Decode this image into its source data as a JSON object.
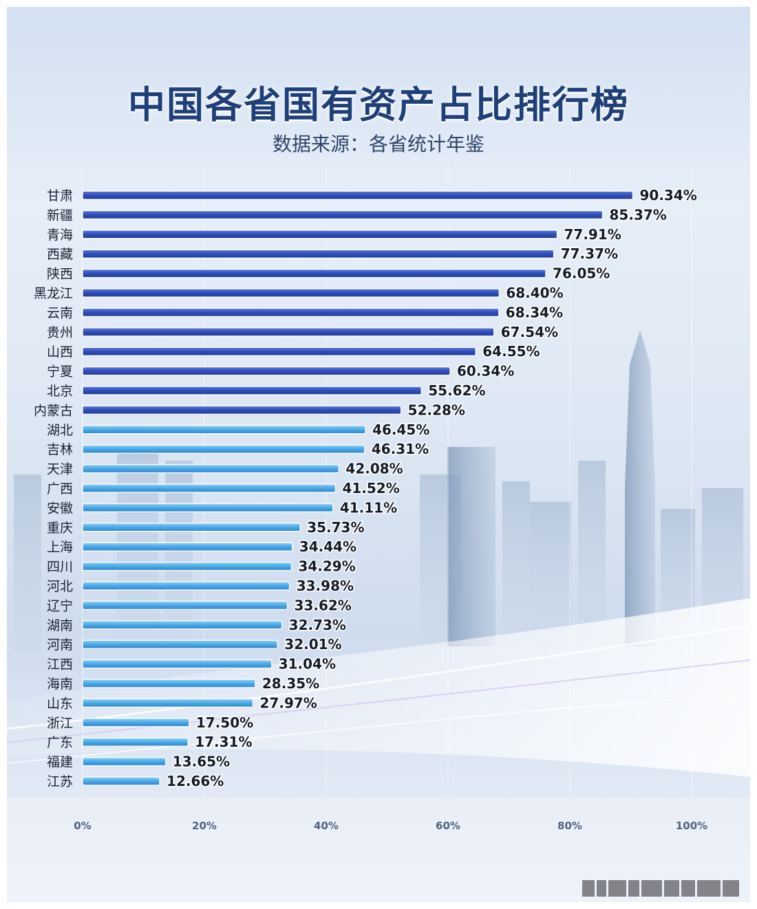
{
  "title": "中国各省国有资产占比排行榜",
  "subtitle": "数据来源：各省统计年鉴",
  "colors": {
    "dark_bar": "#2f4eb8",
    "light_bar": "#4aa8e6",
    "title": "#1f3f78"
  },
  "chart_data": {
    "type": "bar",
    "orientation": "horizontal",
    "title": "中国各省国有资产占比排行榜",
    "subtitle": "数据来源：各省统计年鉴",
    "categories": [
      "甘肃",
      "新疆",
      "青海",
      "西藏",
      "陕西",
      "黑龙江",
      "云南",
      "贵州",
      "山西",
      "宁夏",
      "北京",
      "内蒙古",
      "湖北",
      "吉林",
      "天津",
      "广西",
      "安徽",
      "重庆",
      "上海",
      "四川",
      "河北",
      "辽宁",
      "湖南",
      "河南",
      "江西",
      "海南",
      "山东",
      "浙江",
      "广东",
      "福建",
      "江苏"
    ],
    "values": [
      90.34,
      85.37,
      77.91,
      77.37,
      76.05,
      68.4,
      68.34,
      67.54,
      64.55,
      60.34,
      55.62,
      52.28,
      46.45,
      46.31,
      42.08,
      41.52,
      41.11,
      35.73,
      34.44,
      34.29,
      33.98,
      33.62,
      32.73,
      32.01,
      31.04,
      28.35,
      27.97,
      17.5,
      17.31,
      13.65,
      12.66
    ],
    "value_labels": [
      "90.34%",
      "85.37%",
      "77.91%",
      "77.37%",
      "76.05%",
      "68.40%",
      "68.34%",
      "67.54%",
      "64.55%",
      "60.34%",
      "55.62%",
      "52.28%",
      "46.45%",
      "46.31%",
      "42.08%",
      "41.52%",
      "41.11%",
      "35.73%",
      "34.44%",
      "34.29%",
      "33.98%",
      "33.62%",
      "32.73%",
      "32.01%",
      "31.04%",
      "28.35%",
      "27.97%",
      "17.50%",
      "17.31%",
      "13.65%",
      "12.66%"
    ],
    "xlim": [
      0,
      100
    ],
    "x_ticks": [
      "0%",
      "20%",
      "40%",
      "60%",
      "80%",
      "100%"
    ],
    "x_tick_values": [
      0,
      20,
      40,
      60,
      80,
      100
    ],
    "dark_threshold": 50,
    "grid": true
  }
}
